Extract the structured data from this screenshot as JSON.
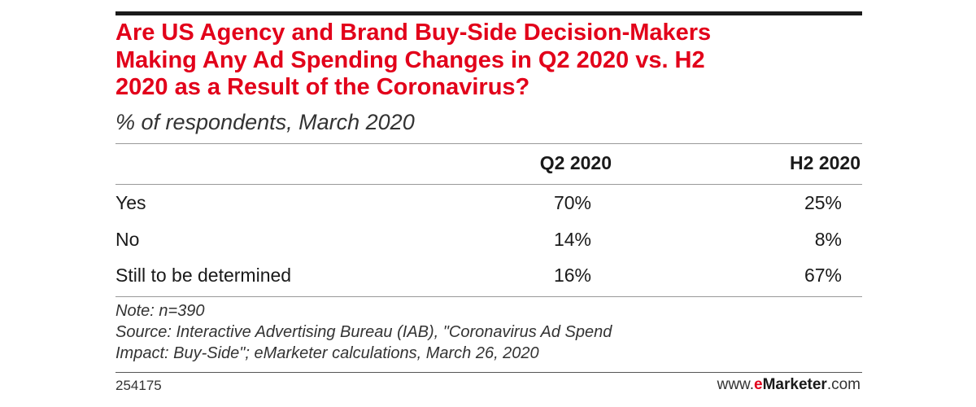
{
  "header": {
    "title_lines": [
      "Are US Agency and Brand Buy-Side Decision-Makers",
      "Making Any Ad Spending Changes in Q2 2020 vs. H2",
      "2020 as a Result of the Coronavirus?"
    ],
    "subtitle": "% of respondents, March 2020"
  },
  "chart_data": {
    "type": "table",
    "title": "Are US Agency and Brand Buy-Side Decision-Makers Making Any Ad Spending Changes in Q2 2020 vs. H2 2020 as a Result of the Coronavirus?",
    "subtitle": "% of respondents, March 2020",
    "columns": [
      "Q2 2020",
      "H2 2020"
    ],
    "rows": [
      {
        "label": "Yes",
        "values": [
          "70%",
          "25%"
        ]
      },
      {
        "label": "No",
        "values": [
          "14%",
          "8%"
        ]
      },
      {
        "label": "Still to be determined",
        "values": [
          "16%",
          "67%"
        ]
      }
    ]
  },
  "footer": {
    "note": "Note: n=390",
    "source_lines": [
      "Source: Interactive Advertising Bureau (IAB), \"Coronavirus Ad Spend",
      "Impact: Buy-Side\"; eMarketer calculations, March 26, 2020"
    ],
    "chart_id": "254175",
    "brand": {
      "prefix": "www.",
      "e": "e",
      "marketer": "Marketer",
      "suffix": ".com"
    }
  },
  "colors": {
    "title_red": "#e2001a",
    "rule": "#1a1a1a"
  }
}
